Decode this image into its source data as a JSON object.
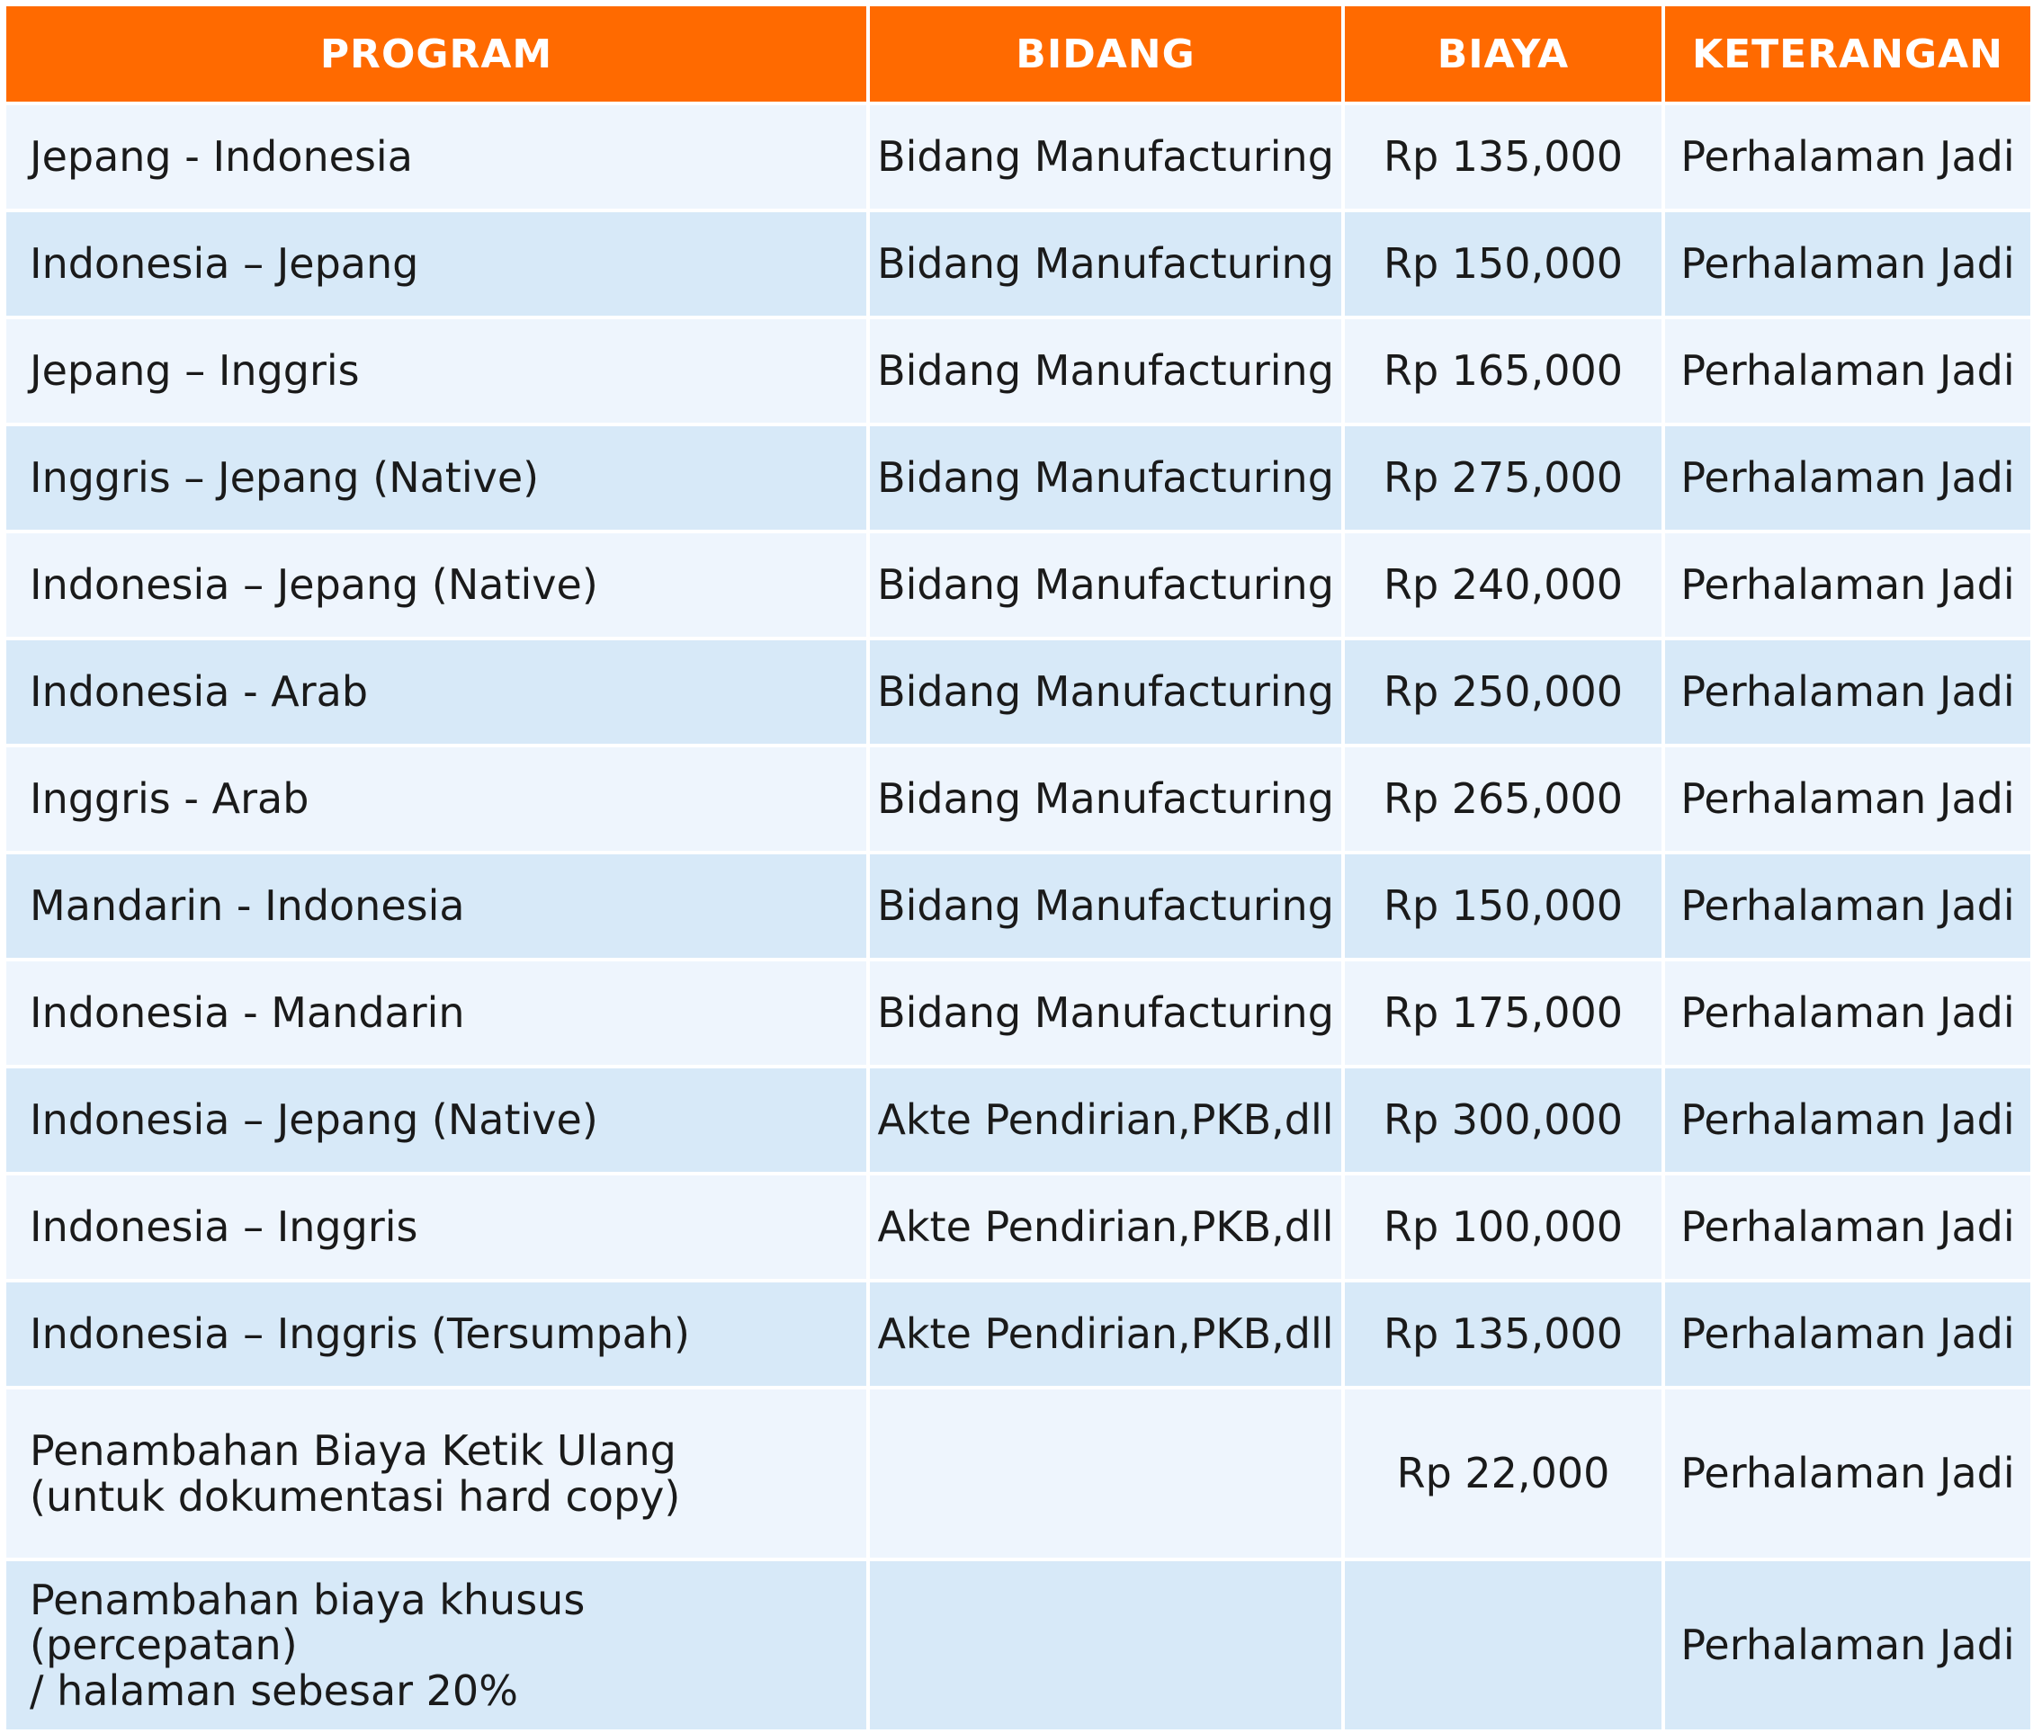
{
  "table": {
    "headers": {
      "program": "PROGRAM",
      "bidang": "BIDANG",
      "biaya": "BIAYA",
      "keterangan": "KETERANGAN"
    },
    "rows": [
      {
        "program": "Jepang - Indonesia",
        "bidang": "Bidang Manufacturing",
        "biaya": "Rp 135,000",
        "keterangan": "Perhalaman Jadi"
      },
      {
        "program": "Indonesia – Jepang",
        "bidang": "Bidang Manufacturing",
        "biaya": "Rp 150,000",
        "keterangan": "Perhalaman Jadi"
      },
      {
        "program": "Jepang – Inggris",
        "bidang": "Bidang Manufacturing",
        "biaya": "Rp 165,000",
        "keterangan": "Perhalaman Jadi"
      },
      {
        "program": "Inggris – Jepang (Native)",
        "bidang": "Bidang Manufacturing",
        "biaya": "Rp 275,000",
        "keterangan": "Perhalaman Jadi"
      },
      {
        "program": "Indonesia – Jepang (Native)",
        "bidang": "Bidang Manufacturing",
        "biaya": "Rp 240,000",
        "keterangan": "Perhalaman Jadi"
      },
      {
        "program": "Indonesia - Arab",
        "bidang": "Bidang Manufacturing",
        "biaya": "Rp 250,000",
        "keterangan": "Perhalaman Jadi"
      },
      {
        "program": "Inggris - Arab",
        "bidang": "Bidang Manufacturing",
        "biaya": "Rp 265,000",
        "keterangan": "Perhalaman Jadi"
      },
      {
        "program": "Mandarin - Indonesia",
        "bidang": "Bidang Manufacturing",
        "biaya": "Rp 150,000",
        "keterangan": "Perhalaman Jadi"
      },
      {
        "program": "Indonesia - Mandarin",
        "bidang": "Bidang Manufacturing",
        "biaya": "Rp 175,000",
        "keterangan": "Perhalaman Jadi"
      },
      {
        "program": "Indonesia – Jepang (Native)",
        "bidang": "Akte Pendirian,PKB,dll",
        "biaya": "Rp 300,000",
        "keterangan": "Perhalaman Jadi"
      },
      {
        "program": "Indonesia – Inggris",
        "bidang": "Akte Pendirian,PKB,dll",
        "biaya": "Rp 100,000",
        "keterangan": "Perhalaman Jadi"
      },
      {
        "program": "Indonesia – Inggris (Tersumpah)",
        "bidang": "Akte Pendirian,PKB,dll",
        "biaya": "Rp 135,000",
        "keterangan": "Perhalaman Jadi"
      },
      {
        "program": "Penambahan Biaya Ketik Ulang\n(untuk dokumentasi hard copy)",
        "bidang": "",
        "biaya": "Rp 22,000",
        "keterangan": "Perhalaman Jadi"
      },
      {
        "program": "Penambahan biaya khusus (percepatan)\n/ halaman sebesar 20%",
        "bidang": "",
        "biaya": "",
        "keterangan": "Perhalaman Jadi"
      }
    ]
  },
  "colors": {
    "header_bg": "#ff6a00",
    "row_light": "#eef5fd",
    "row_dark": "#d7e9f8"
  }
}
